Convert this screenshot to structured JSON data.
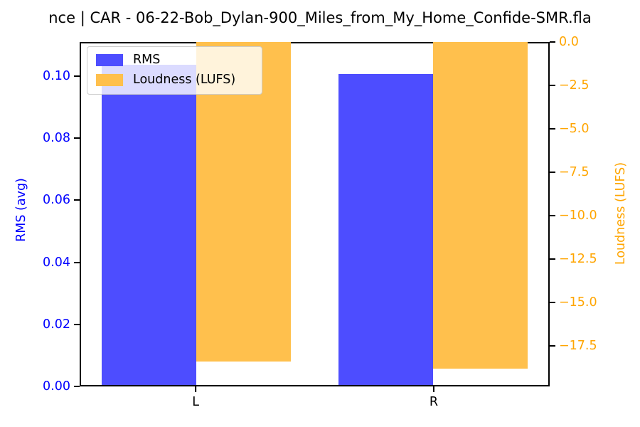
{
  "title": "nce | CAR - 06-22-Bob_Dylan-900_Miles_from_My_Home_Confide-SMR.fla",
  "colors": {
    "rms_bar": "#4d4dff",
    "loudness_bar": "#ffc04d",
    "left_axis_text": "#0000ff",
    "right_axis_text": "#ffa500",
    "spine": "#000000",
    "legend_border": "#cccccc"
  },
  "legend": {
    "items": [
      {
        "label": "RMS",
        "color": "#4d4dff"
      },
      {
        "label": "Loudness (LUFS)",
        "color": "#ffc04d"
      }
    ]
  },
  "chart_data": {
    "type": "bar",
    "categories": [
      "L",
      "R"
    ],
    "series": [
      {
        "name": "RMS",
        "axis": "left",
        "color": "#4d4dff",
        "values": [
          0.104,
          0.101
        ]
      },
      {
        "name": "Loudness (LUFS)",
        "axis": "right",
        "color": "#ffc04d",
        "values": [
          -18.5,
          -18.9
        ]
      }
    ],
    "title": "nce | CAR - 06-22-Bob_Dylan-900_Miles_from_My_Home_Confide-SMR.fla",
    "xlabel": "",
    "left_axis": {
      "label": "RMS (avg)",
      "ticks": [
        "0.00",
        "0.02",
        "0.04",
        "0.06",
        "0.08",
        "0.10"
      ],
      "tick_values": [
        0.0,
        0.02,
        0.04,
        0.06,
        0.08,
        0.1
      ],
      "range": [
        0,
        0.111
      ],
      "color": "#0000ff"
    },
    "right_axis": {
      "label": "Loudness (LUFS)",
      "ticks": [
        "0.0",
        "−2.5",
        "−5.0",
        "−7.5",
        "−10.0",
        "−12.5",
        "−15.0",
        "−17.5"
      ],
      "tick_values": [
        0,
        -2.5,
        -5.0,
        -7.5,
        -10.0,
        -12.5,
        -15.0,
        -17.5
      ],
      "range": [
        -19.85,
        0
      ],
      "color": "#ffa500"
    },
    "x_axis": {
      "tick_labels": [
        "L",
        "R"
      ]
    },
    "legend_position": "upper left",
    "grid": false
  }
}
